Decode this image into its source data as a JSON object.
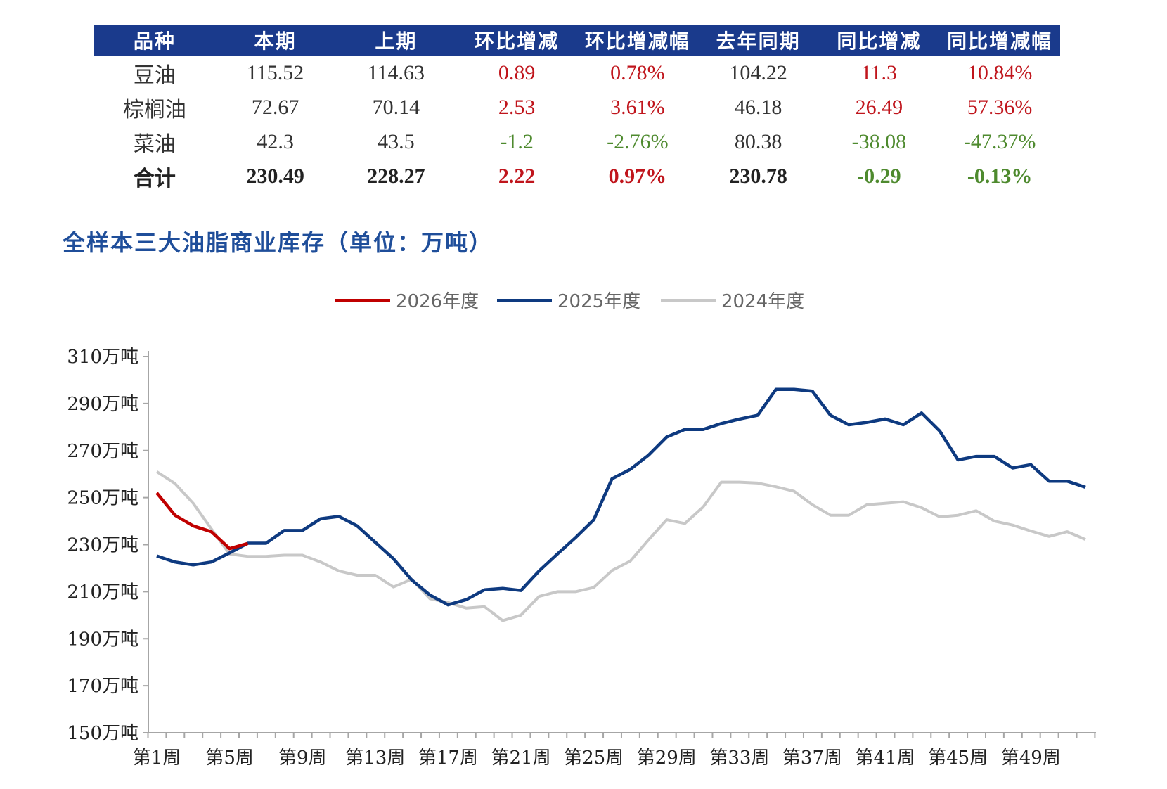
{
  "table": {
    "headers": [
      "品种",
      "本期",
      "上期",
      "环比增减",
      "环比增减幅",
      "去年同期",
      "同比增减",
      "同比增减幅"
    ],
    "rows": [
      {
        "name": "豆油",
        "values": [
          "115.52",
          "114.63",
          "0.89",
          "0.78%",
          "104.22",
          "11.3",
          "10.84%"
        ]
      },
      {
        "name": "棕榈油",
        "values": [
          "72.67",
          "70.14",
          "2.53",
          "3.61%",
          "46.18",
          "26.49",
          "57.36%"
        ]
      },
      {
        "name": "菜油",
        "values": [
          "42.3",
          "43.5",
          "-1.2",
          "-2.76%",
          "80.38",
          "-38.08",
          "-47.37%"
        ]
      },
      {
        "name": "合计",
        "values": [
          "230.49",
          "228.27",
          "2.22",
          "0.97%",
          "230.78",
          "-0.29",
          "-0.13%"
        ],
        "total": true
      }
    ]
  },
  "colors": {
    "header": "#1a3a8c",
    "positive": "#c0151c",
    "negative": "#4e8a2e"
  },
  "chart_data": {
    "type": "line",
    "title": "全样本三大油脂商业库存（单位：万吨）",
    "ylim": [
      150,
      310
    ],
    "yticks": [
      150,
      170,
      190,
      210,
      230,
      250,
      270,
      290,
      310
    ],
    "ytick_suffix": "万吨",
    "xtick_labels": [
      "第1周",
      "第5周",
      "第9周",
      "第13周",
      "第17周",
      "第21周",
      "第25周",
      "第29周",
      "第33周",
      "第37周",
      "第41周",
      "第45周",
      "第49周"
    ],
    "weeks": 52,
    "legend_position": "top-center",
    "series": [
      {
        "name": "2026年度",
        "color": "#c00000",
        "values": [
          252,
          242.5,
          238,
          235.5,
          228.3,
          230.5
        ]
      },
      {
        "name": "2025年度",
        "color": "#0e3a80",
        "values": [
          225.2,
          222.6,
          221.4,
          222.6,
          226.5,
          230.6,
          230.6,
          236,
          236,
          241,
          242,
          238,
          231,
          224,
          215,
          208.6,
          204.4,
          206.6,
          210.8,
          211.4,
          210.5,
          218.8,
          226,
          233,
          240.6,
          258,
          262,
          268,
          275.8,
          279,
          279,
          281.5,
          283.4,
          285,
          296,
          296,
          295.3,
          285,
          281,
          282,
          283.4,
          281,
          286,
          278.3,
          266,
          267.5,
          267.5,
          262.6,
          264,
          257,
          257,
          254.4
        ]
      },
      {
        "name": "2024年度",
        "color": "#c8c8c8",
        "values": [
          261,
          256,
          247.6,
          236.7,
          226,
          225,
          225,
          225.5,
          225.5,
          222.6,
          218.8,
          217,
          217,
          212,
          215.3,
          207,
          205.4,
          203,
          203.6,
          197.7,
          200,
          208,
          210,
          210,
          211.8,
          219,
          223,
          232,
          240.6,
          239,
          246,
          256.6,
          256.6,
          256.2,
          254.6,
          252.7,
          247,
          242.5,
          242.5,
          247,
          247.6,
          248.2,
          245.7,
          241.8,
          242.5,
          244.4,
          240,
          238.3,
          235.8,
          233.5,
          235.5,
          232.2
        ]
      }
    ]
  }
}
